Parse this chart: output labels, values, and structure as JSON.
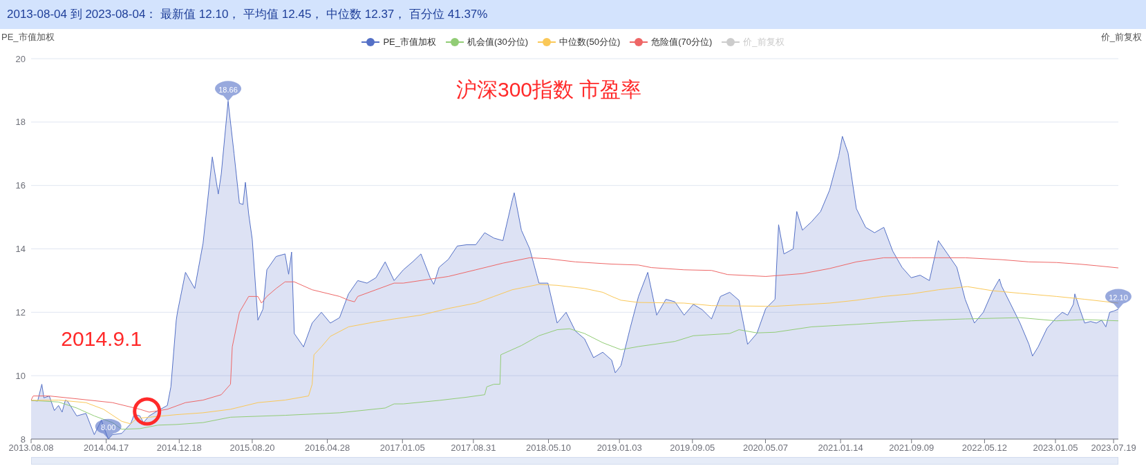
{
  "chart_data": {
    "type": "line",
    "title": "2013-08-04 到 2023-08-04： 最新值 12.10， 平均值 12.45， 中位数 12.37， 百分位 41.37%",
    "ylabel": "PE_市值加权",
    "y2label": "价_前复权",
    "annotations": [
      "沪深300指数 市盈率",
      {
        "text": "2014.9.1",
        "x": "2014-09-01",
        "y": 8.87
      }
    ],
    "xlim": [
      "2013-08-08",
      "2023-08-04"
    ],
    "xticks": [
      {
        "value": "2013-08-08",
        "label": "2013.08.08"
      },
      {
        "value": "2014-04-17",
        "label": "2014.04.17"
      },
      {
        "value": "2014-12-18",
        "label": "2014.12.18"
      },
      {
        "value": "2015-08-20",
        "label": "2015.08.20"
      },
      {
        "value": "2016-04-28",
        "label": "2016.04.28"
      },
      {
        "value": "2017-01-05",
        "label": "2017.01.05"
      },
      {
        "value": "2017-08-31",
        "label": "2017.08.31"
      },
      {
        "value": "2018-05-10",
        "label": "2018.05.10"
      },
      {
        "value": "2019-01-03",
        "label": "2019.01.03"
      },
      {
        "value": "2019-09-05",
        "label": "2019.09.05"
      },
      {
        "value": "2020-05-07",
        "label": "2020.05.07"
      },
      {
        "value": "2021-01-14",
        "label": "2021.01.14"
      },
      {
        "value": "2021-09-09",
        "label": "2021.09.09"
      },
      {
        "value": "2022-05-12",
        "label": "2022.05.12"
      },
      {
        "value": "2023-01-05",
        "label": "2023.01.05"
      },
      {
        "value": "2023-07-19",
        "label": "2023.07.19"
      }
    ],
    "ylim": [
      8,
      20
    ],
    "yticks": [
      8,
      10,
      12,
      14,
      16,
      18,
      20
    ],
    "grid": "y",
    "legend": "top",
    "marker": "none",
    "series": [
      {
        "name": "PE_市值加权",
        "type": "area",
        "color": "#5470c6",
        "x": [
          "2013-08-08",
          "2013-08-30",
          "2013-09-13",
          "2013-09-20",
          "2013-10-08",
          "2013-10-25",
          "2013-11-08",
          "2013-11-20",
          "2013-12-01",
          "2013-12-08",
          "2014-01-08",
          "2014-02-08",
          "2014-03-08",
          "2014-04-01",
          "2014-04-08",
          "2014-04-24",
          "2014-05-08",
          "2014-06-08",
          "2014-07-08",
          "2014-07-20",
          "2014-08-08",
          "2014-08-20",
          "2014-09-08",
          "2014-10-08",
          "2014-11-08",
          "2014-11-20",
          "2014-12-08",
          "2014-12-12",
          "2015-01-08",
          "2015-02-08",
          "2015-03-08",
          "2015-04-08",
          "2015-04-28",
          "2015-05-08",
          "2015-05-31",
          "2015-06-20",
          "2015-07-08",
          "2015-07-20",
          "2015-07-28",
          "2015-08-08",
          "2015-08-20",
          "2015-09-08",
          "2015-09-25",
          "2015-10-08",
          "2015-11-08",
          "2015-12-08",
          "2015-12-20",
          "2015-12-30",
          "2016-01-08",
          "2016-02-08",
          "2016-03-08",
          "2016-04-08",
          "2016-05-08",
          "2016-06-08",
          "2016-07-08",
          "2016-08-08",
          "2016-09-08",
          "2016-10-08",
          "2016-11-08",
          "2016-12-08",
          "2017-01-08",
          "2017-02-08",
          "2017-03-08",
          "2017-04-08",
          "2017-04-20",
          "2017-05-08",
          "2017-06-08",
          "2017-07-08",
          "2017-08-08",
          "2017-09-08",
          "2017-10-08",
          "2017-11-08",
          "2017-12-08",
          "2018-01-08",
          "2018-01-15",
          "2018-02-08",
          "2018-03-08",
          "2018-04-08",
          "2018-05-08",
          "2018-06-08",
          "2018-07-08",
          "2018-08-08",
          "2018-09-08",
          "2018-10-08",
          "2018-11-08",
          "2018-12-08",
          "2018-12-20",
          "2019-01-08",
          "2019-02-08",
          "2019-03-08",
          "2019-04-08",
          "2019-05-08",
          "2019-06-08",
          "2019-07-08",
          "2019-08-08",
          "2019-09-08",
          "2019-10-08",
          "2019-11-08",
          "2019-12-08",
          "2020-01-08",
          "2020-02-08",
          "2020-03-08",
          "2020-04-08",
          "2020-05-08",
          "2020-06-08",
          "2020-06-20",
          "2020-07-08",
          "2020-08-08",
          "2020-08-20",
          "2020-09-08",
          "2020-10-08",
          "2020-11-08",
          "2020-12-08",
          "2021-01-08",
          "2021-01-20",
          "2021-02-08",
          "2021-03-08",
          "2021-04-08",
          "2021-05-08",
          "2021-06-08",
          "2021-07-08",
          "2021-08-08",
          "2021-09-08",
          "2021-10-08",
          "2021-11-08",
          "2021-12-08",
          "2022-01-08",
          "2022-02-08",
          "2022-03-08",
          "2022-04-08",
          "2022-05-08",
          "2022-06-08",
          "2022-07-01",
          "2022-07-08",
          "2022-08-08",
          "2022-09-08",
          "2022-10-08",
          "2022-10-20",
          "2022-11-08",
          "2022-12-08",
          "2023-01-08",
          "2023-01-28",
          "2023-02-15",
          "2023-03-06",
          "2023-03-11",
          "2023-03-25",
          "2023-04-13",
          "2023-05-03",
          "2023-05-22",
          "2023-06-09",
          "2023-06-23",
          "2023-07-06",
          "2023-07-20",
          "2023-08-04"
        ],
        "values": [
          9.22,
          9.2,
          9.73,
          9.3,
          9.36,
          8.9,
          9.06,
          8.85,
          9.23,
          9.2,
          8.73,
          8.81,
          8.14,
          8.6,
          8.4,
          8.0,
          8.14,
          8.18,
          8.48,
          8.78,
          8.73,
          8.52,
          8.73,
          8.9,
          9.06,
          9.65,
          11.75,
          12.0,
          13.26,
          12.75,
          14.18,
          16.9,
          15.73,
          16.36,
          18.66,
          17.0,
          15.44,
          15.4,
          16.1,
          15.1,
          14.3,
          11.75,
          12.1,
          13.34,
          13.76,
          13.84,
          13.2,
          13.9,
          11.33,
          10.91,
          11.66,
          12.0,
          11.66,
          11.83,
          12.58,
          13.0,
          12.92,
          13.09,
          13.59,
          13.0,
          13.34,
          13.59,
          13.84,
          13.09,
          12.88,
          13.42,
          13.67,
          14.09,
          14.13,
          14.13,
          14.51,
          14.34,
          14.26,
          15.52,
          15.77,
          14.59,
          14.0,
          12.92,
          12.92,
          11.66,
          12.0,
          11.41,
          11.16,
          10.57,
          10.74,
          10.49,
          10.09,
          10.32,
          11.5,
          12.5,
          13.26,
          11.91,
          12.41,
          12.33,
          11.91,
          12.25,
          12.08,
          11.79,
          12.5,
          12.63,
          12.38,
          10.99,
          11.33,
          12.12,
          12.41,
          14.76,
          13.84,
          14.0,
          15.18,
          14.59,
          14.85,
          15.18,
          15.85,
          16.94,
          17.55,
          17.03,
          15.27,
          14.68,
          14.51,
          14.68,
          13.93,
          13.42,
          13.09,
          13.17,
          13.0,
          14.26,
          13.84,
          13.42,
          12.41,
          11.66,
          12.0,
          12.67,
          13.05,
          12.83,
          12.25,
          11.66,
          10.99,
          10.62,
          10.91,
          11.5,
          11.83,
          12.0,
          11.91,
          12.25,
          12.58,
          12.17,
          11.66,
          11.71,
          11.66,
          11.75,
          11.54,
          12.0,
          12.04,
          12.1
        ],
        "value_labels": [
          null,
          null,
          null,
          null,
          null,
          null,
          null,
          null,
          null,
          null,
          null,
          null,
          null,
          null,
          null,
          "8.00",
          null,
          null,
          null,
          null,
          null,
          null,
          null,
          null,
          null,
          null,
          null,
          null,
          null,
          null,
          null,
          null,
          null,
          null,
          "18.66",
          null,
          null,
          null,
          null,
          null,
          null,
          null,
          null,
          null,
          null,
          null,
          null,
          null,
          null,
          null,
          null,
          null,
          null,
          null,
          null,
          null,
          null,
          null,
          null,
          null,
          null,
          null,
          null,
          null,
          null,
          null,
          null,
          null,
          null,
          null,
          null,
          null,
          null,
          null,
          null,
          null,
          null,
          null,
          null,
          null,
          null,
          null,
          null,
          null,
          null,
          null,
          null,
          null,
          null,
          null,
          null,
          null,
          null,
          null,
          null,
          null,
          null,
          null,
          null,
          null,
          null,
          null,
          null,
          null,
          null,
          null,
          null,
          null,
          null,
          null,
          null,
          null,
          null,
          null,
          null,
          null,
          null,
          null,
          null,
          null,
          null,
          null,
          null,
          null,
          null,
          null,
          null,
          null,
          null,
          null,
          null,
          null,
          null,
          null,
          null,
          null,
          null,
          null,
          null,
          null,
          null,
          null,
          null,
          null,
          null,
          null,
          null,
          null,
          null,
          null,
          null,
          null,
          null,
          "12.10"
        ]
      },
      {
        "name": "机会值(30分位)",
        "color": "#91cc75",
        "x": [
          "2013-08-08",
          "2013-11-08",
          "2014-01-08",
          "2014-03-08",
          "2014-05-08",
          "2014-06-08",
          "2014-08-08",
          "2014-10-08",
          "2014-12-08",
          "2015-03-08",
          "2015-06-08",
          "2015-12-08",
          "2016-06-08",
          "2016-11-08",
          "2016-12-08",
          "2017-01-08",
          "2017-05-08",
          "2017-08-08",
          "2017-10-08",
          "2017-10-15",
          "2017-11-08",
          "2017-11-28",
          "2017-12-01",
          "2018-02-08",
          "2018-04-08",
          "2018-06-08",
          "2018-07-20",
          "2018-09-08",
          "2018-11-08",
          "2019-01-08",
          "2019-03-08",
          "2019-07-08",
          "2019-09-08",
          "2020-01-08",
          "2020-02-08",
          "2020-04-08",
          "2020-06-08",
          "2020-10-08",
          "2021-03-08",
          "2021-09-08",
          "2022-03-08",
          "2022-09-08",
          "2023-01-08",
          "2023-04-13",
          "2023-08-04"
        ],
        "values": [
          9.22,
          9.17,
          8.98,
          8.73,
          8.52,
          8.31,
          8.33,
          8.44,
          8.46,
          8.52,
          8.69,
          8.75,
          8.83,
          8.98,
          9.11,
          9.11,
          9.22,
          9.32,
          9.4,
          9.65,
          9.73,
          9.73,
          10.66,
          10.95,
          11.26,
          11.45,
          11.48,
          11.33,
          11.04,
          10.82,
          10.92,
          11.08,
          11.26,
          11.33,
          11.45,
          11.35,
          11.37,
          11.54,
          11.62,
          11.73,
          11.79,
          11.83,
          11.73,
          11.77,
          11.73
        ]
      },
      {
        "name": "中位数(50分位)",
        "color": "#fac858",
        "x": [
          "2013-08-08",
          "2013-11-08",
          "2014-02-08",
          "2014-04-08",
          "2014-06-08",
          "2014-07-08",
          "2014-07-28",
          "2014-09-08",
          "2014-12-08",
          "2015-03-08",
          "2015-06-08",
          "2015-09-08",
          "2015-12-08",
          "2016-02-25",
          "2016-03-08",
          "2016-03-14",
          "2016-04-08",
          "2016-05-08",
          "2016-07-08",
          "2016-10-08",
          "2016-12-08",
          "2017-03-08",
          "2017-06-08",
          "2017-09-08",
          "2017-11-08",
          "2018-01-08",
          "2018-04-08",
          "2018-06-08",
          "2018-09-08",
          "2018-11-08",
          "2018-12-08",
          "2019-01-08",
          "2019-03-08",
          "2019-08-08",
          "2019-11-08",
          "2020-05-08",
          "2020-06-08",
          "2020-12-08",
          "2021-03-08",
          "2021-06-08",
          "2021-09-08",
          "2021-12-08",
          "2022-03-15",
          "2022-06-08",
          "2022-09-08",
          "2023-01-08",
          "2023-04-13",
          "2023-08-04"
        ],
        "values": [
          9.22,
          9.23,
          9.15,
          8.94,
          8.56,
          8.48,
          8.65,
          8.69,
          8.77,
          8.83,
          8.94,
          9.15,
          9.23,
          9.36,
          9.73,
          10.66,
          10.91,
          11.24,
          11.54,
          11.7,
          11.79,
          11.91,
          12.12,
          12.29,
          12.5,
          12.71,
          12.88,
          12.85,
          12.75,
          12.63,
          12.5,
          12.38,
          12.31,
          12.29,
          12.21,
          12.19,
          12.19,
          12.29,
          12.38,
          12.5,
          12.58,
          12.71,
          12.81,
          12.68,
          12.6,
          12.5,
          12.41,
          12.29
        ]
      },
      {
        "name": "危险值(70分位)",
        "color": "#ee6666",
        "x": [
          "2013-08-08",
          "2013-08-15",
          "2013-10-08",
          "2014-01-08",
          "2014-05-08",
          "2014-08-08",
          "2014-09-08",
          "2014-11-08",
          "2015-01-08",
          "2015-03-08",
          "2015-05-08",
          "2015-06-08",
          "2015-06-14",
          "2015-07-08",
          "2015-08-08",
          "2015-09-08",
          "2015-09-20",
          "2015-10-08",
          "2015-11-08",
          "2015-12-08",
          "2016-01-08",
          "2016-03-08",
          "2016-06-08",
          "2016-07-08",
          "2016-07-28",
          "2016-08-08",
          "2016-10-08",
          "2016-12-08",
          "2017-01-08",
          "2017-06-08",
          "2017-09-08",
          "2017-12-08",
          "2018-03-08",
          "2018-05-08",
          "2018-08-08",
          "2018-12-08",
          "2019-03-08",
          "2019-04-20",
          "2019-08-08",
          "2019-11-08",
          "2020-01-01",
          "2020-05-08",
          "2020-09-08",
          "2020-12-08",
          "2021-03-08",
          "2021-06-08",
          "2021-09-08",
          "2021-12-08",
          "2022-03-08",
          "2022-07-08",
          "2022-10-08",
          "2023-01-08",
          "2023-03-25",
          "2023-05-22",
          "2023-08-04"
        ],
        "values": [
          9.23,
          9.36,
          9.36,
          9.27,
          9.15,
          8.94,
          8.85,
          8.94,
          9.15,
          9.23,
          9.4,
          9.73,
          10.91,
          12.0,
          12.5,
          12.5,
          12.29,
          12.5,
          12.75,
          12.96,
          12.96,
          12.71,
          12.5,
          12.38,
          12.33,
          12.5,
          12.71,
          12.92,
          12.92,
          13.13,
          13.34,
          13.55,
          13.72,
          13.69,
          13.59,
          13.52,
          13.49,
          13.41,
          13.34,
          13.32,
          13.19,
          13.13,
          13.22,
          13.38,
          13.59,
          13.72,
          13.72,
          13.72,
          13.72,
          13.66,
          13.59,
          13.57,
          13.52,
          13.47,
          13.4
        ]
      },
      {
        "name": "价_前复权",
        "color": "#cccccc"
      }
    ]
  }
}
